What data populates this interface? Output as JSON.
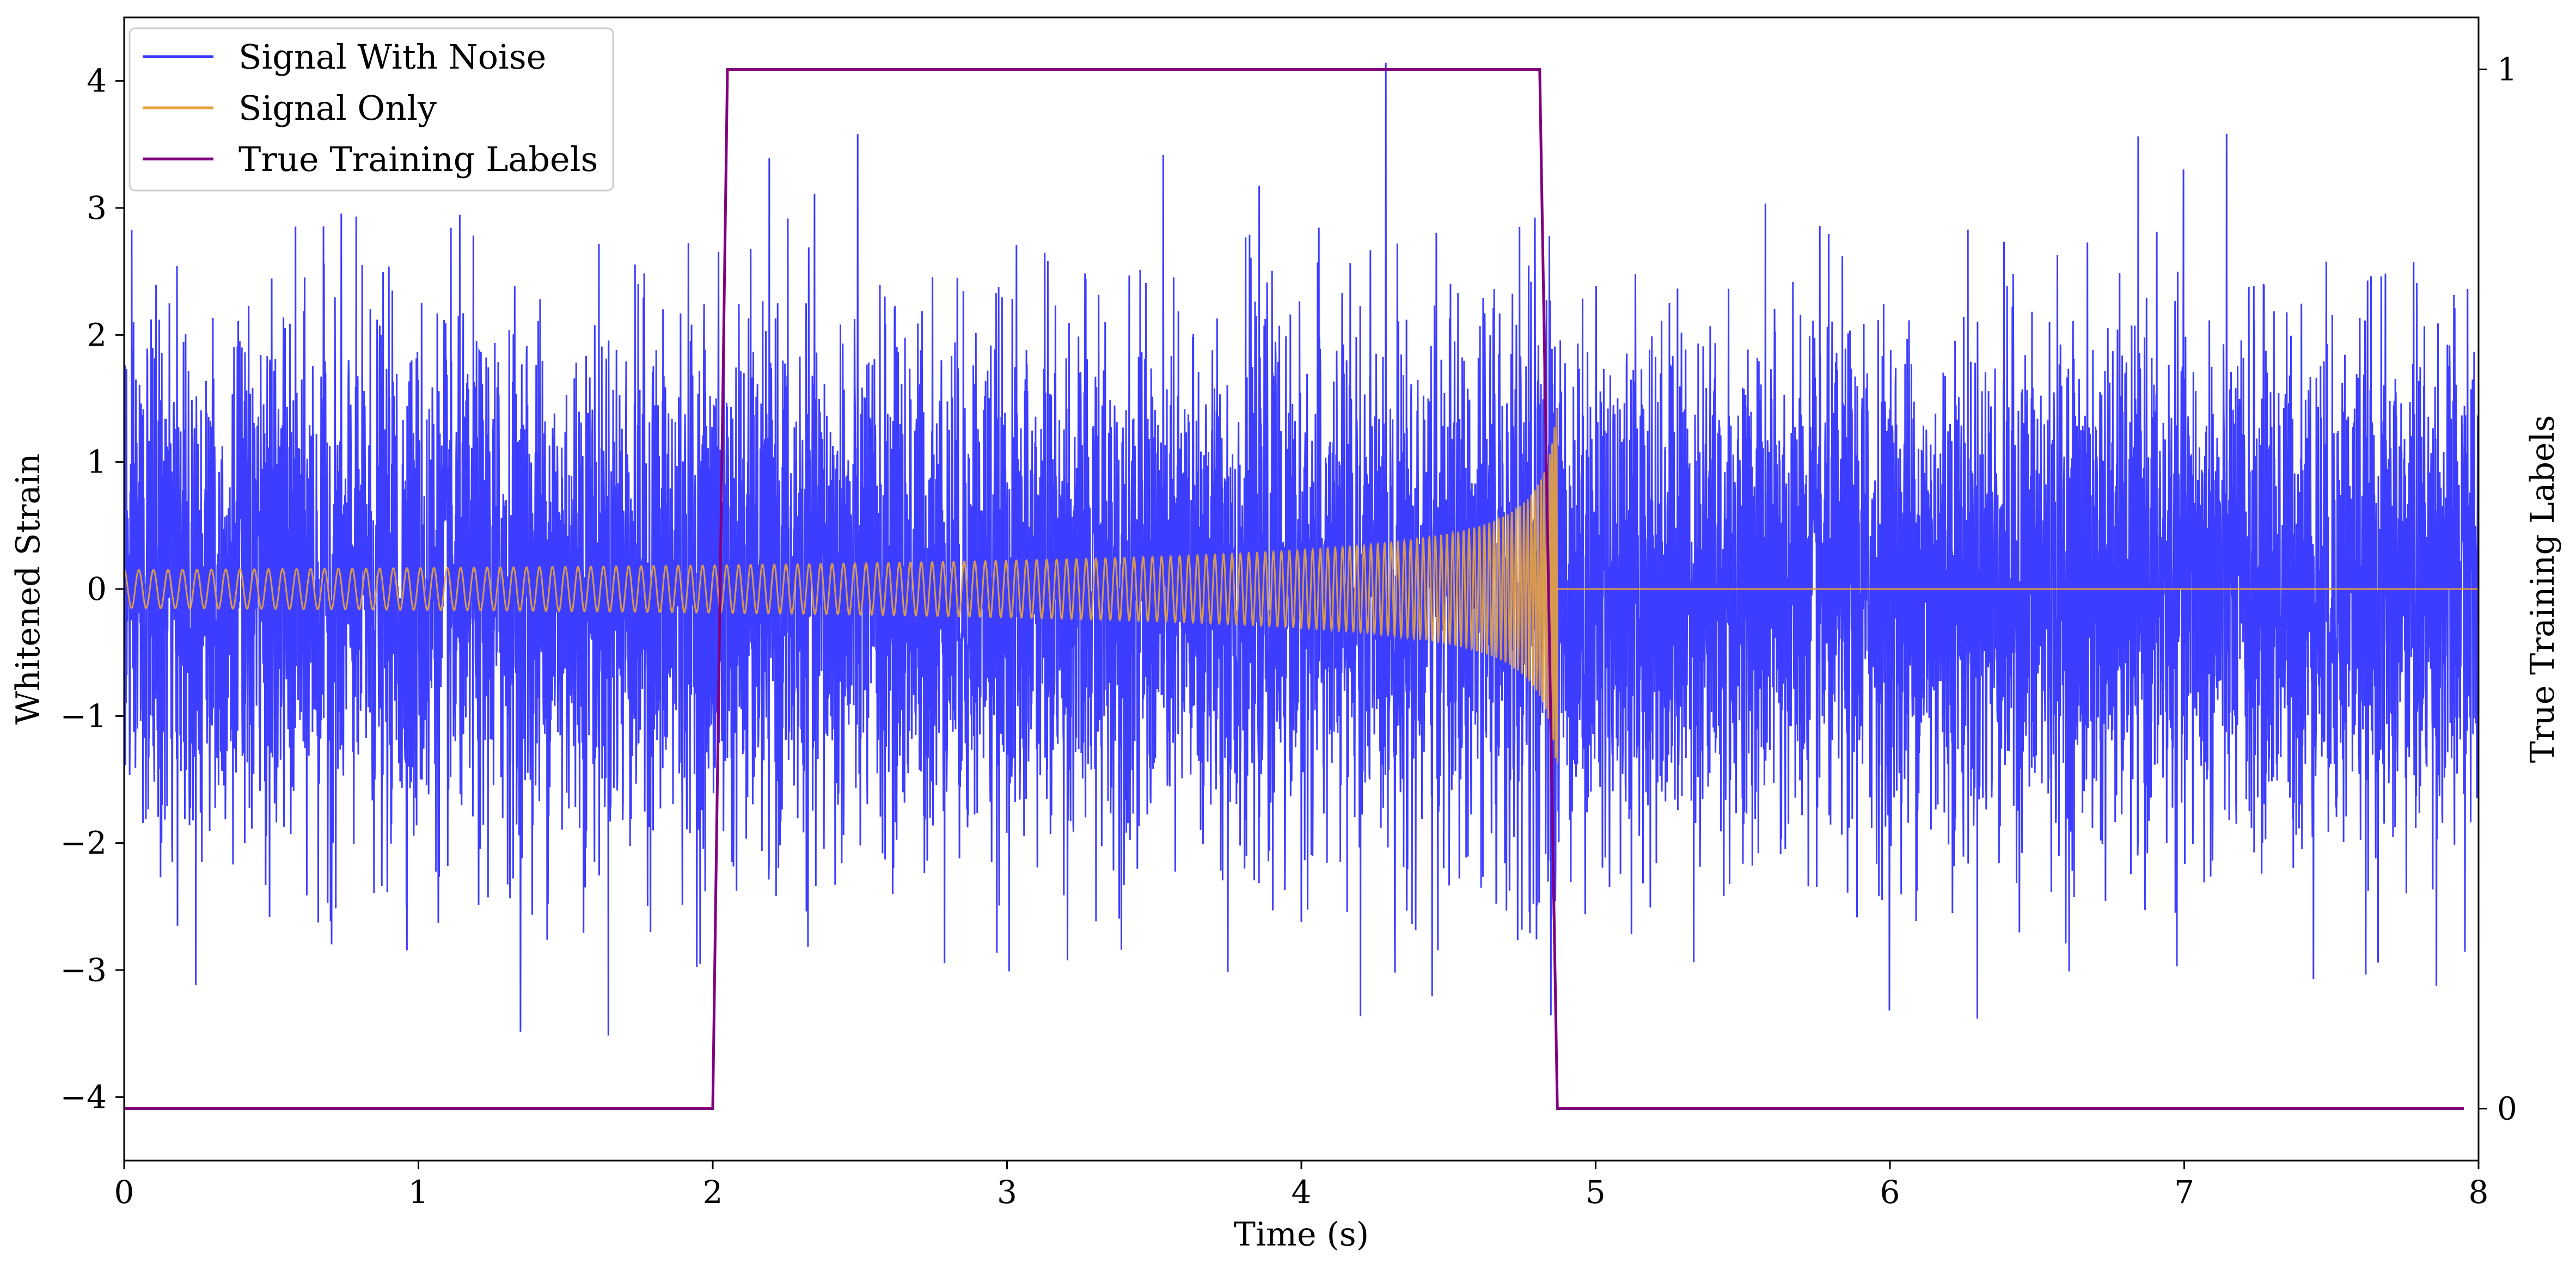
{
  "chart_data": {
    "type": "line",
    "xlabel": "Time (s)",
    "ylabel": "Whitened Strain",
    "y2label": "True Training Labels",
    "xlim": [
      0,
      8
    ],
    "ylim": [
      -4.5,
      4.5
    ],
    "y2lim": [
      -0.05,
      1.05
    ],
    "x_ticks": [
      0,
      1,
      2,
      3,
      4,
      5,
      6,
      7,
      8
    ],
    "y_ticks": [
      -4,
      -3,
      -2,
      -1,
      0,
      1,
      2,
      3,
      4
    ],
    "y2_ticks": [
      0,
      1
    ],
    "legend_position": "top-left",
    "series": [
      {
        "name": "Signal With Noise",
        "axis": "left",
        "color": "#3333ff",
        "description_params": {
          "noise_std": 1.0,
          "peak_abs_max": 4.0
        }
      },
      {
        "name": "Signal Only",
        "axis": "left",
        "color": "#e8a33d",
        "chirp": {
          "t_start": 0.0,
          "t_merge": 4.87,
          "t_end": 8.0,
          "amp_start": 0.15,
          "amp_peak": 1.45
        }
      },
      {
        "name": "True Training Labels",
        "axis": "right",
        "color": "#800080",
        "x": [
          0.0,
          2.0,
          2.05,
          4.81,
          4.87,
          7.95
        ],
        "y": [
          0,
          0,
          1,
          1,
          0,
          0
        ]
      }
    ]
  }
}
